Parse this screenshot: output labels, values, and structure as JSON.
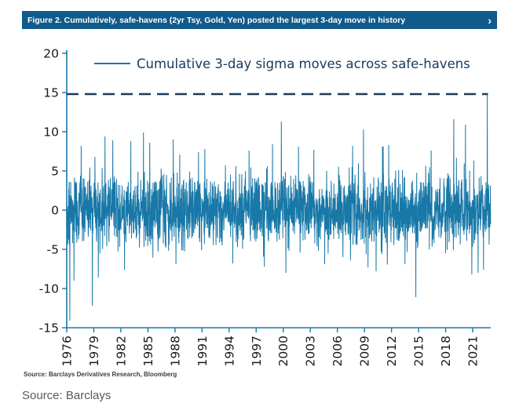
{
  "header": {
    "title": "Figure 2. Cumulatively, safe-havens (2yr Tsy, Gold, Yen) posted the largest 3-day move in history",
    "arrow": "›",
    "bg_color": "#115a8c"
  },
  "chart_data": {
    "type": "line",
    "title": "",
    "xlabel": "",
    "ylabel": "",
    "legend": [
      "Cumulative 3-day sigma moves across safe-havens"
    ],
    "legend_position": "top-inside",
    "grid": false,
    "x_range": [
      1976,
      2023
    ],
    "ylim": [
      -15,
      20
    ],
    "y_ticks": [
      20,
      15,
      10,
      5,
      0,
      -5,
      -10,
      -15
    ],
    "x_ticks": [
      1976,
      1979,
      1982,
      1985,
      1988,
      1991,
      1994,
      1997,
      2000,
      2003,
      2006,
      2009,
      2012,
      2015,
      2018,
      2021
    ],
    "series_color": "#1878a8",
    "axis_color": "#1878a8",
    "tick_color": "#1a1a1a",
    "legend_text_color": "#173a5e",
    "dashed_reference_line": {
      "y": 14.8,
      "x_end": 2022.7,
      "color": "#1b3a5a"
    },
    "noise": {
      "seed": 42,
      "n_points": 2350,
      "amplitude": 2.2,
      "tail_prob": 0.03,
      "tail_mult": 1.6,
      "clamp": [
        -9.3,
        9.6
      ]
    },
    "spikes": [
      {
        "x": 1976.35,
        "y": -14.1
      },
      {
        "x": 1976.8,
        "y": -9.0
      },
      {
        "x": 1977.6,
        "y": 8.2
      },
      {
        "x": 1978.85,
        "y": -12.2
      },
      {
        "x": 1979.5,
        "y": -8.6
      },
      {
        "x": 1980.25,
        "y": 9.4
      },
      {
        "x": 1981.1,
        "y": 8.9
      },
      {
        "x": 1982.4,
        "y": -7.6
      },
      {
        "x": 1983.1,
        "y": 8.8
      },
      {
        "x": 1984.5,
        "y": 9.9
      },
      {
        "x": 1985.2,
        "y": 8.6
      },
      {
        "x": 1987.8,
        "y": 9.0
      },
      {
        "x": 1988.1,
        "y": -6.9
      },
      {
        "x": 1990.6,
        "y": 7.4
      },
      {
        "x": 1991.3,
        "y": 7.8
      },
      {
        "x": 1994.4,
        "y": -6.8
      },
      {
        "x": 1996.2,
        "y": 7.6
      },
      {
        "x": 1997.9,
        "y": -7.2
      },
      {
        "x": 1998.8,
        "y": 8.4
      },
      {
        "x": 1999.8,
        "y": 11.3
      },
      {
        "x": 2000.3,
        "y": -8.0
      },
      {
        "x": 2001.7,
        "y": 8.1
      },
      {
        "x": 2003.4,
        "y": 7.7
      },
      {
        "x": 2004.6,
        "y": -6.9
      },
      {
        "x": 2007.7,
        "y": 8.2
      },
      {
        "x": 2008.9,
        "y": 10.3
      },
      {
        "x": 2009.4,
        "y": -7.3
      },
      {
        "x": 2010.3,
        "y": -7.8
      },
      {
        "x": 2011.7,
        "y": 8.3
      },
      {
        "x": 2013.5,
        "y": -6.9
      },
      {
        "x": 2014.7,
        "y": -11.1
      },
      {
        "x": 2016.4,
        "y": 7.6
      },
      {
        "x": 2018.9,
        "y": 11.6
      },
      {
        "x": 2020.2,
        "y": 10.9
      },
      {
        "x": 2020.9,
        "y": -8.2
      },
      {
        "x": 2021.6,
        "y": -8.0
      },
      {
        "x": 2022.2,
        "y": -7.6
      },
      {
        "x": 2022.62,
        "y": 14.8
      }
    ]
  },
  "source_note": "Source: Barclays Derivatives Research, Bloomberg",
  "caption": "Source: Barclays"
}
